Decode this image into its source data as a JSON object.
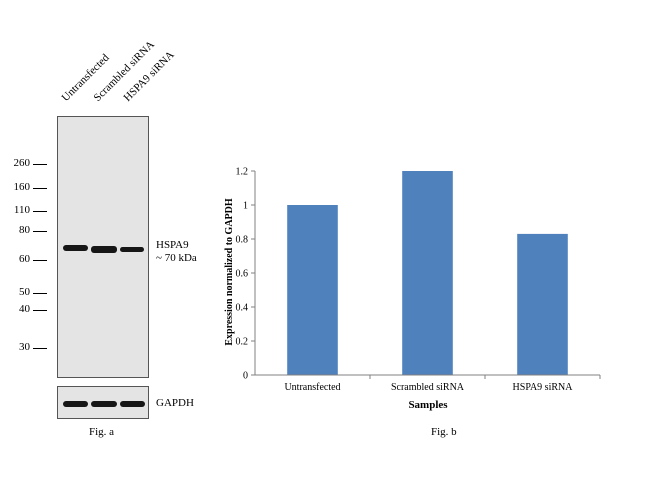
{
  "western_blot": {
    "lanes": [
      "Untransfected",
      "Scrambled siRNA",
      "HSPA9 siRNA"
    ],
    "mw_markers": [
      "260",
      "160",
      "110",
      "80",
      "60",
      "50",
      "40",
      "30"
    ],
    "band_label_1": "HSPA9",
    "band_label_2": "~ 70 kDa",
    "loading_control": "GAPDH",
    "caption": "Fig. a"
  },
  "chart_data": {
    "type": "bar",
    "categories": [
      "Untransfected",
      "Scrambled siRNA",
      "HSPA9 siRNA"
    ],
    "values": [
      1.0,
      1.2,
      0.83
    ],
    "xlabel": "Samples",
    "ylabel": "Expression normalized to GAPDH",
    "ylim": [
      0,
      1.2
    ],
    "yticks": [
      "0",
      "0.2",
      "0.4",
      "0.6",
      "0.8",
      "1",
      "1.2"
    ],
    "bar_color": "#4f81bd",
    "grid": false,
    "caption": "Fig. b"
  }
}
